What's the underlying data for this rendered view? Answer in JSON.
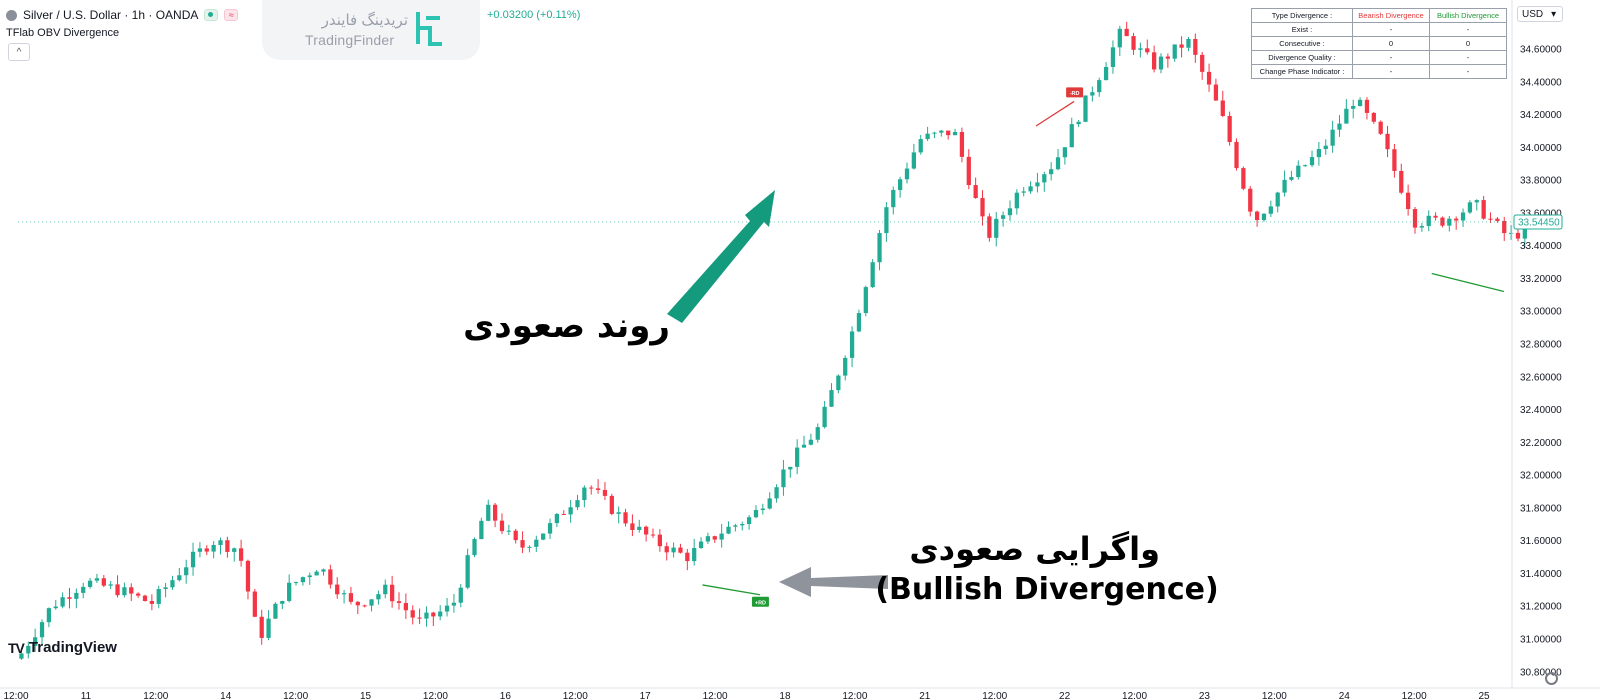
{
  "legend": {
    "symbol": "Silver / U.S. Dollar · 1h · OANDA",
    "change": "+0.03200 (+0.11%)",
    "indicator": "TFlab OBV Divergence",
    "collapse": "^"
  },
  "watermark": {
    "fa": "تریدینگ فایندر",
    "en": "TradingFinder"
  },
  "table": {
    "header": {
      "label": "Type Divergence :",
      "bearish": "Bearish Divergence",
      "bullish": "Bullish Divergence"
    },
    "rows": [
      {
        "label": "Exist :",
        "bearish": "-",
        "bullish": "-"
      },
      {
        "label": "Consecutive :",
        "bearish": "0",
        "bullish": "0"
      },
      {
        "label": "Divergence Quality :",
        "bearish": "-",
        "bullish": "-"
      },
      {
        "label": "Change Phase Indicator :",
        "bearish": "-",
        "bullish": "-"
      }
    ]
  },
  "currency": {
    "label": "USD",
    "caret": "▾"
  },
  "annotations": {
    "uptrend": "روند صعودی",
    "bullish_fa": "واگرایی صعودی",
    "bullish_en": "(Bullish Divergence)"
  },
  "branding": {
    "tv_mark": "TV",
    "tv_name": "TradingView"
  },
  "colors": {
    "up": "#22ab94",
    "down": "#f23645",
    "bull_line": "#1f9b34",
    "bear_line": "#e03a3a",
    "arrow_green": "#149a7c",
    "arrow_gray": "#8f949c"
  },
  "chart_data": {
    "type": "candlestick",
    "symbol": "Silver / U.S. Dollar",
    "timeframe": "1h",
    "y_axis": {
      "ticks": [
        "30.80000",
        "31.00000",
        "31.20000",
        "31.40000",
        "31.60000",
        "31.80000",
        "32.00000",
        "32.20000",
        "32.40000",
        "32.60000",
        "32.80000",
        "33.00000",
        "33.20000",
        "33.40000",
        "33.60000",
        "33.80000",
        "34.00000",
        "34.20000",
        "34.40000",
        "34.60000"
      ],
      "range": [
        30.75,
        34.85
      ]
    },
    "x_axis": {
      "labels": [
        "12:00",
        "11",
        "12:00",
        "14",
        "12:00",
        "15",
        "12:00",
        "16",
        "12:00",
        "17",
        "12:00",
        "18",
        "12:00",
        "21",
        "12:00",
        "22",
        "12:00",
        "23",
        "12:00",
        "24",
        "12:00",
        "25"
      ],
      "range": [
        0,
        22.8
      ]
    },
    "last_price": "33.54450",
    "path": [
      [
        0,
        30.88
      ],
      [
        0.5,
        31.2
      ],
      [
        1.0,
        31.35
      ],
      [
        1.5,
        31.3
      ],
      [
        2.0,
        31.22
      ],
      [
        2.5,
        31.45
      ],
      [
        2.9,
        31.6
      ],
      [
        3.3,
        31.55
      ],
      [
        3.6,
        31.0
      ],
      [
        4.0,
        31.3
      ],
      [
        4.5,
        31.45
      ],
      [
        5.0,
        31.2
      ],
      [
        5.5,
        31.3
      ],
      [
        6.0,
        31.1
      ],
      [
        6.5,
        31.2
      ],
      [
        7.0,
        31.8
      ],
      [
        7.5,
        31.55
      ],
      [
        8.0,
        31.7
      ],
      [
        8.5,
        31.95
      ],
      [
        9.0,
        31.75
      ],
      [
        9.5,
        31.6
      ],
      [
        10.0,
        31.5
      ],
      [
        10.5,
        31.65
      ],
      [
        11.0,
        31.75
      ],
      [
        11.5,
        32.05
      ],
      [
        12.0,
        32.3
      ],
      [
        12.5,
        32.9
      ],
      [
        13.0,
        33.65
      ],
      [
        13.5,
        34.05
      ],
      [
        14.0,
        34.1
      ],
      [
        14.5,
        33.45
      ],
      [
        15.0,
        33.75
      ],
      [
        15.5,
        33.9
      ],
      [
        16.0,
        34.3
      ],
      [
        16.5,
        34.7
      ],
      [
        17.0,
        34.5
      ],
      [
        17.5,
        34.65
      ],
      [
        18.0,
        34.2
      ],
      [
        18.5,
        33.55
      ],
      [
        19.0,
        33.8
      ],
      [
        19.5,
        33.98
      ],
      [
        20.0,
        34.3
      ],
      [
        20.4,
        34.05
      ],
      [
        20.9,
        33.55
      ],
      [
        21.3,
        33.55
      ],
      [
        21.8,
        33.65
      ],
      [
        22.3,
        33.45
      ],
      [
        22.8,
        33.54
      ]
    ],
    "bearish_divergence": {
      "start": [
        15.23,
        34.13
      ],
      "end": [
        15.8,
        34.28
      ],
      "label": "-RD"
    },
    "bullish_divergence": {
      "start": [
        10.24,
        31.33
      ],
      "end": [
        11.1,
        31.27
      ],
      "label": "+RD"
    },
    "bullish_divergence_2": {
      "start": [
        21.15,
        33.23
      ],
      "end": [
        22.23,
        33.12
      ]
    }
  }
}
